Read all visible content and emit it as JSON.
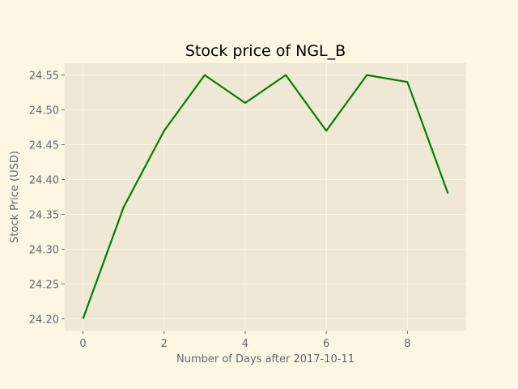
{
  "chart_data": {
    "type": "line",
    "title": "Stock price of NGL_B",
    "xlabel": "Number of Days after 2017-10-11",
    "ylabel": "Stock Price (USD)",
    "x": [
      0,
      1,
      2,
      3,
      4,
      5,
      6,
      7,
      8,
      9
    ],
    "series": [
      {
        "values": [
          24.2,
          24.36,
          24.47,
          24.55,
          24.51,
          24.55,
          24.47,
          24.55,
          24.54,
          24.38
        ]
      }
    ],
    "xlim": [
      -0.45,
      9.45
    ],
    "ylim": [
      24.183,
      24.567
    ],
    "xticks": [
      0,
      2,
      4,
      6,
      8
    ],
    "xtick_labels": [
      "0",
      "2",
      "4",
      "6",
      "8"
    ],
    "yticks": [
      24.2,
      24.25,
      24.3,
      24.35,
      24.4,
      24.45,
      24.5,
      24.55
    ],
    "ytick_labels": [
      "24.20",
      "24.25",
      "24.30",
      "24.35",
      "24.40",
      "24.45",
      "24.50",
      "24.55"
    ],
    "grid": true,
    "colors": {
      "figure_background": "#fdf6e3",
      "plot_background": "#eee8d5",
      "grid": "#fdf6e3",
      "line": "#008000",
      "tick_text": "#5f6b73"
    }
  }
}
